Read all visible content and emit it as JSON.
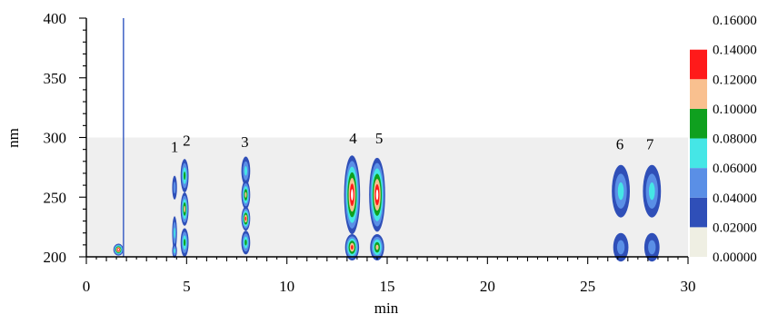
{
  "chart_data": {
    "type": "heatmap",
    "xlabel": "min",
    "ylabel": "nm",
    "xlim": [
      0,
      30
    ],
    "ylim": [
      200,
      400
    ],
    "data_region_y": [
      200,
      300
    ],
    "x_ticks": [
      0,
      5,
      10,
      15,
      20,
      25,
      30
    ],
    "y_ticks": [
      200,
      250,
      300,
      350,
      400
    ],
    "peak_labels": [
      {
        "label": "1",
        "x": 4.4,
        "y": 288
      },
      {
        "label": "2",
        "x": 5.0,
        "y": 293
      },
      {
        "label": "3",
        "x": 7.9,
        "y": 292
      },
      {
        "label": "4",
        "x": 13.3,
        "y": 295
      },
      {
        "label": "5",
        "x": 14.6,
        "y": 295
      },
      {
        "label": "6",
        "x": 26.6,
        "y": 290
      },
      {
        "label": "7",
        "x": 28.1,
        "y": 290
      }
    ],
    "spots": [
      {
        "x": 1.6,
        "y": 206,
        "rx": 0.25,
        "ry": 5,
        "max": 0.14
      },
      {
        "x": 4.4,
        "y": 258,
        "rx": 0.12,
        "ry": 10,
        "max": 0.04
      },
      {
        "x": 4.4,
        "y": 220,
        "rx": 0.12,
        "ry": 14,
        "max": 0.06
      },
      {
        "x": 4.4,
        "y": 205,
        "rx": 0.12,
        "ry": 6,
        "max": 0.05
      },
      {
        "x": 4.9,
        "y": 268,
        "rx": 0.2,
        "ry": 14,
        "max": 0.08
      },
      {
        "x": 4.9,
        "y": 240,
        "rx": 0.2,
        "ry": 14,
        "max": 0.1
      },
      {
        "x": 4.9,
        "y": 212,
        "rx": 0.2,
        "ry": 12,
        "max": 0.08
      },
      {
        "x": 7.95,
        "y": 272,
        "rx": 0.22,
        "ry": 12,
        "max": 0.06
      },
      {
        "x": 7.95,
        "y": 252,
        "rx": 0.22,
        "ry": 12,
        "max": 0.1
      },
      {
        "x": 7.95,
        "y": 232,
        "rx": 0.22,
        "ry": 10,
        "max": 0.12
      },
      {
        "x": 7.95,
        "y": 212,
        "rx": 0.22,
        "ry": 10,
        "max": 0.08
      },
      {
        "x": 13.25,
        "y": 252,
        "rx": 0.4,
        "ry": 33,
        "max": 0.14
      },
      {
        "x": 13.25,
        "y": 208,
        "rx": 0.35,
        "ry": 11,
        "max": 0.12
      },
      {
        "x": 14.5,
        "y": 252,
        "rx": 0.4,
        "ry": 31,
        "max": 0.14
      },
      {
        "x": 14.5,
        "y": 208,
        "rx": 0.35,
        "ry": 11,
        "max": 0.1
      },
      {
        "x": 26.65,
        "y": 255,
        "rx": 0.45,
        "ry": 22,
        "max": 0.06
      },
      {
        "x": 26.65,
        "y": 208,
        "rx": 0.38,
        "ry": 12,
        "max": 0.04
      },
      {
        "x": 28.2,
        "y": 255,
        "rx": 0.45,
        "ry": 22,
        "max": 0.06
      },
      {
        "x": 28.2,
        "y": 208,
        "rx": 0.38,
        "ry": 12,
        "max": 0.04
      }
    ],
    "solvent_front_x": 1.85,
    "colorbar": {
      "levels": [
        0.0,
        0.02,
        0.04,
        0.06,
        0.08,
        0.1,
        0.12,
        0.14,
        0.16
      ],
      "tick_labels": [
        "0.00000",
        "0.02000",
        "0.04000",
        "0.06000",
        "0.08000",
        "0.10000",
        "0.12000",
        "0.14000",
        "0.16000"
      ],
      "colors": [
        "#efefe3",
        "#2f4fb8",
        "#5a8fe6",
        "#45e6e6",
        "#0fa01f",
        "#f9c08f",
        "#ff1a1a",
        "#ffffff"
      ],
      "background_color": "#efefef"
    }
  }
}
